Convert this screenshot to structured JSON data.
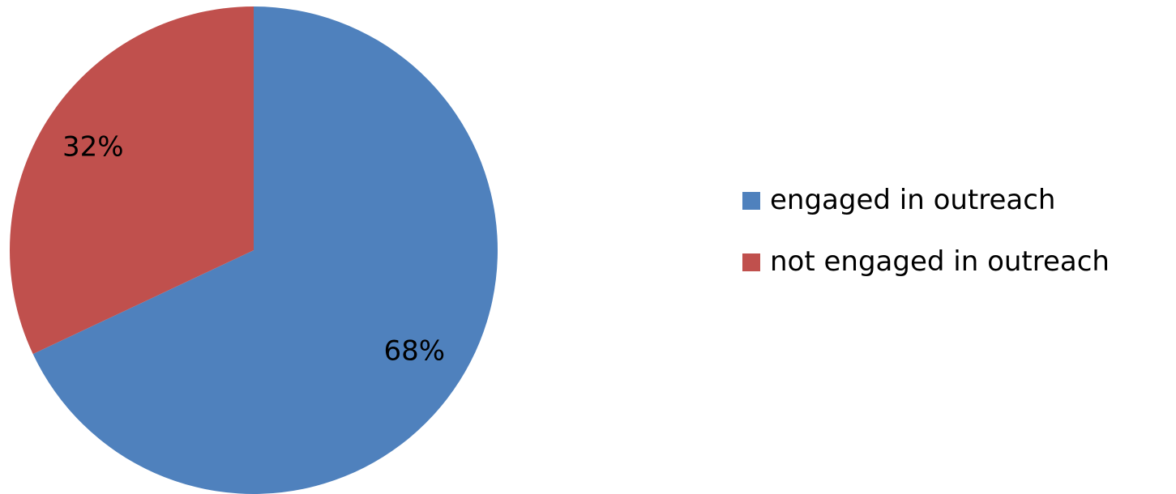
{
  "chart_data": {
    "type": "pie",
    "title": "",
    "categories": [
      "engaged in outreach",
      "not engaged in outreach"
    ],
    "values": [
      68,
      32
    ],
    "data_labels": [
      "68%",
      "32%"
    ],
    "colors": [
      "#4f81bd",
      "#c0504d"
    ],
    "legend_placement": "right",
    "start_angle": "12 o'clock, clockwise"
  }
}
